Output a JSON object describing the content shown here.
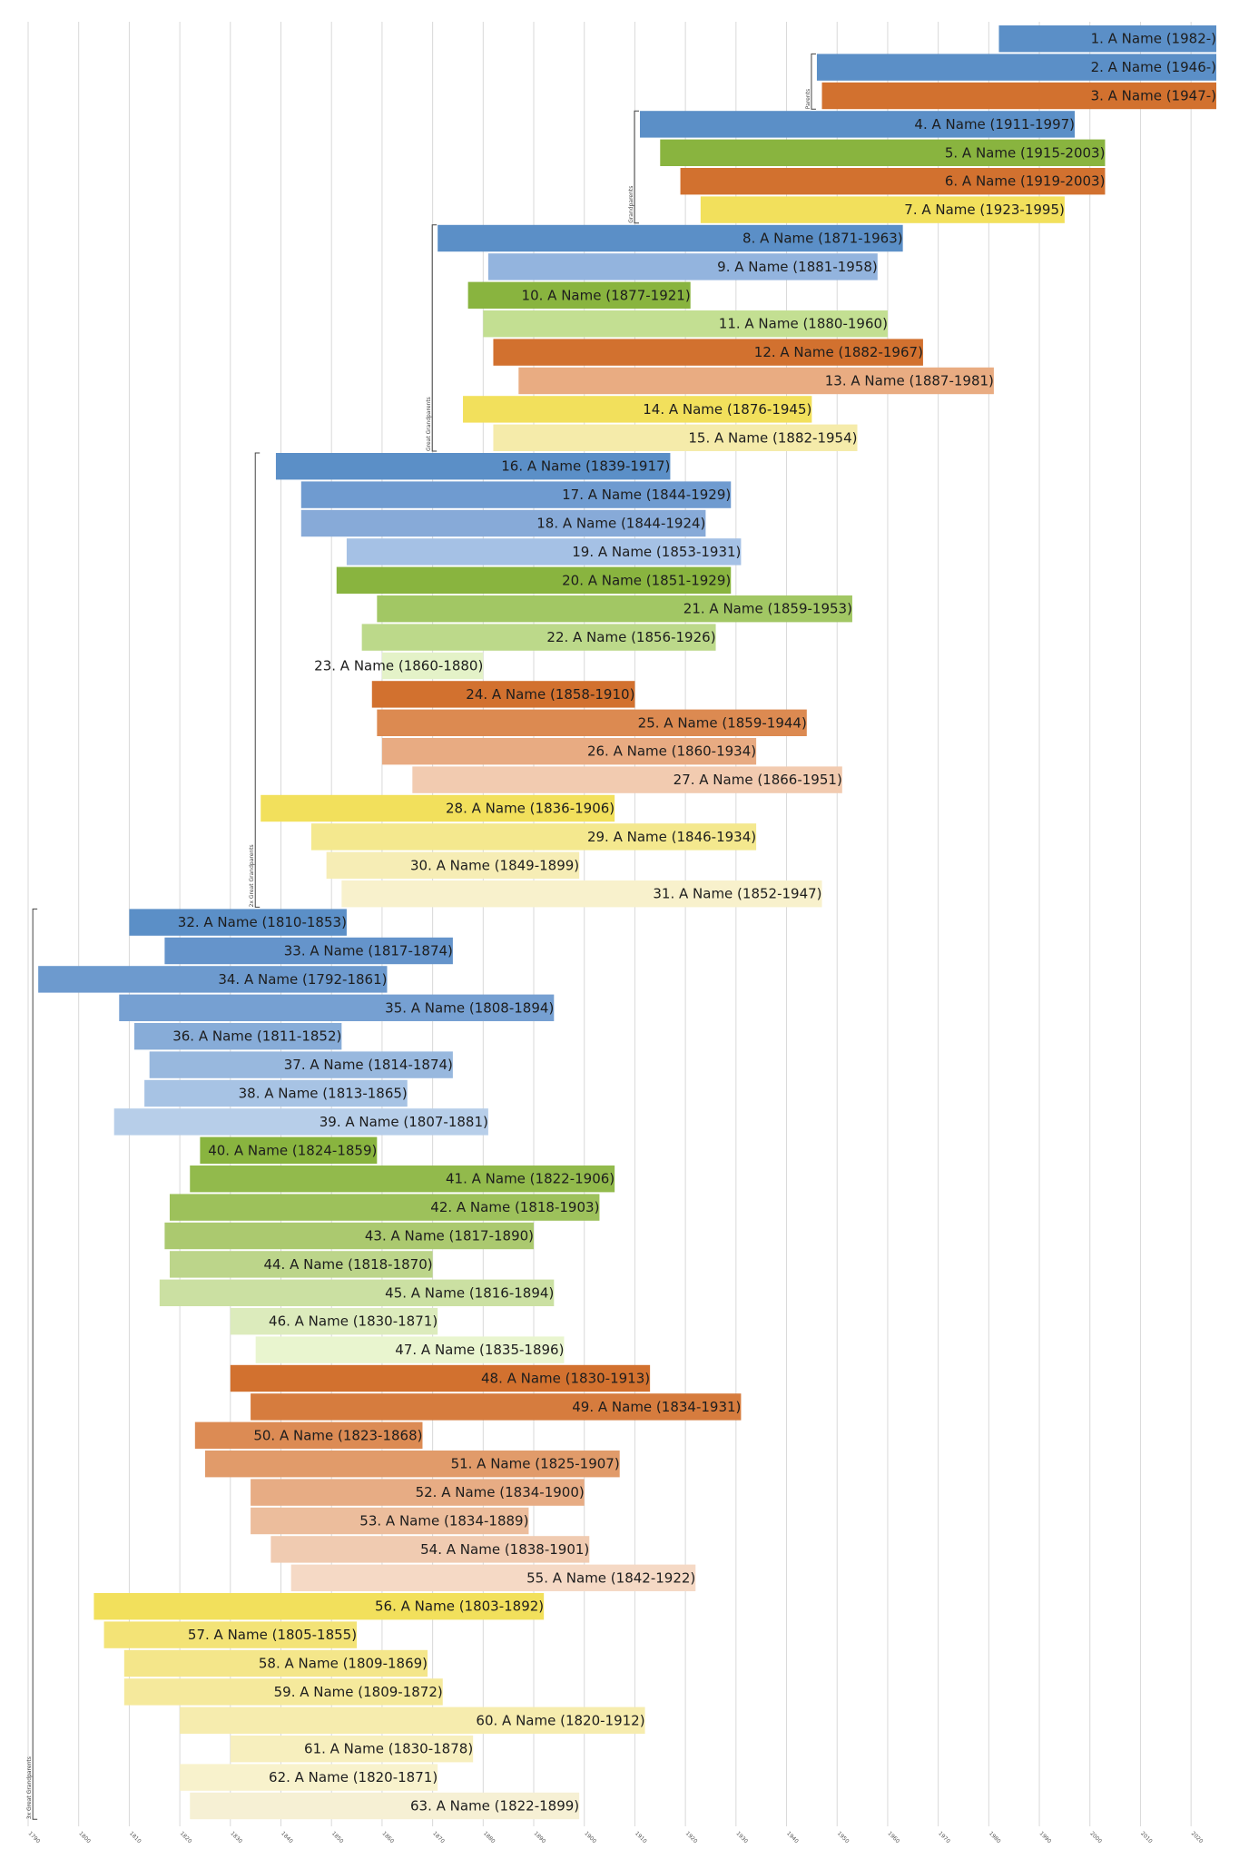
{
  "chart_data": {
    "type": "bar",
    "orientation": "horizontal",
    "x_domain": [
      1790,
      2025
    ],
    "x_ticks": [
      1790,
      1800,
      1810,
      1820,
      1830,
      1840,
      1850,
      1860,
      1870,
      1880,
      1890,
      1900,
      1910,
      1920,
      1930,
      1940,
      1950,
      1960,
      1970,
      1980,
      1990,
      2000,
      2010,
      2020
    ],
    "grid": true,
    "generations": [
      {
        "label": "Parents",
        "first": 2,
        "last": 3
      },
      {
        "label": "Grandparents",
        "first": 4,
        "last": 7
      },
      {
        "label": "Great Grandparents",
        "first": 8,
        "last": 15
      },
      {
        "label": "2x Great Grandparents",
        "first": 16,
        "last": 31
      },
      {
        "label": "3x Great Grandparents",
        "first": 32,
        "last": 63
      }
    ],
    "people": [
      {
        "label": "1. A Name (1982-)",
        "start": 1982,
        "end": 2025,
        "color": "#5b8fc7"
      },
      {
        "label": "2. A Name (1946-)",
        "start": 1946,
        "end": 2025,
        "color": "#5b8fc7"
      },
      {
        "label": "3. A Name (1947-)",
        "start": 1947,
        "end": 2025,
        "color": "#d2712f"
      },
      {
        "label": "4. A Name (1911-1997)",
        "start": 1911,
        "end": 1997,
        "color": "#5b8fc7"
      },
      {
        "label": "5. A Name (1915-2003)",
        "start": 1915,
        "end": 2003,
        "color": "#89b43f"
      },
      {
        "label": "6. A Name (1919-2003)",
        "start": 1919,
        "end": 2003,
        "color": "#d2712f"
      },
      {
        "label": "7. A Name (1923-1995)",
        "start": 1923,
        "end": 1995,
        "color": "#f2e05c"
      },
      {
        "label": "8. A Name (1871-1963)",
        "start": 1871,
        "end": 1963,
        "color": "#5b8fc7"
      },
      {
        "label": "9. A Name (1881-1958)",
        "start": 1881,
        "end": 1958,
        "color": "#93b4de"
      },
      {
        "label": "10. A Name (1877-1921)",
        "start": 1877,
        "end": 1921,
        "color": "#89b43f"
      },
      {
        "label": "11. A Name (1880-1960)",
        "start": 1880,
        "end": 1960,
        "color": "#c3df92"
      },
      {
        "label": "12. A Name (1882-1967)",
        "start": 1882,
        "end": 1967,
        "color": "#d2712f"
      },
      {
        "label": "13. A Name (1887-1981)",
        "start": 1887,
        "end": 1981,
        "color": "#e9ac82"
      },
      {
        "label": "14. A Name (1876-1945)",
        "start": 1876,
        "end": 1945,
        "color": "#f2e05c"
      },
      {
        "label": "15. A Name (1882-1954)",
        "start": 1882,
        "end": 1954,
        "color": "#f5ebaa"
      },
      {
        "label": "16. A Name (1839-1917)",
        "start": 1839,
        "end": 1917,
        "color": "#5b8fc7"
      },
      {
        "label": "17. A Name (1844-1929)",
        "start": 1844,
        "end": 1929,
        "color": "#6f9bd0"
      },
      {
        "label": "18. A Name (1844-1924)",
        "start": 1844,
        "end": 1924,
        "color": "#87aad8"
      },
      {
        "label": "19. A Name (1853-1931)",
        "start": 1853,
        "end": 1931,
        "color": "#a5c1e5"
      },
      {
        "label": "20. A Name (1851-1929)",
        "start": 1851,
        "end": 1929,
        "color": "#89b43f"
      },
      {
        "label": "21. A Name (1859-1953)",
        "start": 1859,
        "end": 1953,
        "color": "#a2c764"
      },
      {
        "label": "22. A Name (1856-1926)",
        "start": 1856,
        "end": 1926,
        "color": "#bcd98a"
      },
      {
        "label": "23. A Name (1860-1880)",
        "start": 1860,
        "end": 1880,
        "color": "#e4f2c8"
      },
      {
        "label": "24. A Name (1858-1910)",
        "start": 1858,
        "end": 1910,
        "color": "#d2712f"
      },
      {
        "label": "25. A Name (1859-1944)",
        "start": 1859,
        "end": 1944,
        "color": "#dc8a51"
      },
      {
        "label": "26. A Name (1860-1934)",
        "start": 1860,
        "end": 1934,
        "color": "#e8ab82"
      },
      {
        "label": "27. A Name (1866-1951)",
        "start": 1866,
        "end": 1951,
        "color": "#f2cbb0"
      },
      {
        "label": "28. A Name (1836-1906)",
        "start": 1836,
        "end": 1906,
        "color": "#f2e05c"
      },
      {
        "label": "29. A Name (1846-1934)",
        "start": 1846,
        "end": 1934,
        "color": "#f4e88e"
      },
      {
        "label": "30. A Name (1849-1899)",
        "start": 1849,
        "end": 1899,
        "color": "#f6edb5"
      },
      {
        "label": "31. A Name (1852-1947)",
        "start": 1852,
        "end": 1947,
        "color": "#f8f1cc"
      },
      {
        "label": "32. A Name (1810-1853)",
        "start": 1810,
        "end": 1853,
        "color": "#5b8fc7"
      },
      {
        "label": "33. A Name (1817-1874)",
        "start": 1817,
        "end": 1874,
        "color": "#6594cb"
      },
      {
        "label": "34. A Name (1792-1861)",
        "start": 1792,
        "end": 1861,
        "color": "#6d9ace"
      },
      {
        "label": "35. A Name (1808-1894)",
        "start": 1808,
        "end": 1894,
        "color": "#76a0d2"
      },
      {
        "label": "36. A Name (1811-1852)",
        "start": 1811,
        "end": 1852,
        "color": "#87acd8"
      },
      {
        "label": "37. A Name (1814-1874)",
        "start": 1814,
        "end": 1874,
        "color": "#98b8de"
      },
      {
        "label": "38. A Name (1813-1865)",
        "start": 1813,
        "end": 1865,
        "color": "#a7c3e4"
      },
      {
        "label": "39. A Name (1807-1881)",
        "start": 1807,
        "end": 1881,
        "color": "#b7cee9"
      },
      {
        "label": "40. A Name (1824-1859)",
        "start": 1824,
        "end": 1859,
        "color": "#89b43f"
      },
      {
        "label": "41. A Name (1822-1906)",
        "start": 1822,
        "end": 1906,
        "color": "#92ba4c"
      },
      {
        "label": "42. A Name (1818-1903)",
        "start": 1818,
        "end": 1903,
        "color": "#9dc15b"
      },
      {
        "label": "43. A Name (1817-1890)",
        "start": 1817,
        "end": 1890,
        "color": "#abc96f"
      },
      {
        "label": "44. A Name (1818-1870)",
        "start": 1818,
        "end": 1870,
        "color": "#bcd58a"
      },
      {
        "label": "45. A Name (1816-1894)",
        "start": 1816,
        "end": 1894,
        "color": "#cbe0a2"
      },
      {
        "label": "46. A Name (1830-1871)",
        "start": 1830,
        "end": 1871,
        "color": "#dcebbc"
      },
      {
        "label": "47. A Name (1835-1896)",
        "start": 1835,
        "end": 1896,
        "color": "#e9f5cf"
      },
      {
        "label": "48. A Name (1830-1913)",
        "start": 1830,
        "end": 1913,
        "color": "#d2712f"
      },
      {
        "label": "49. A Name (1834-1931)",
        "start": 1834,
        "end": 1931,
        "color": "#d67c3e"
      },
      {
        "label": "50. A Name (1823-1868)",
        "start": 1823,
        "end": 1868,
        "color": "#dc8b54"
      },
      {
        "label": "51. A Name (1825-1907)",
        "start": 1825,
        "end": 1907,
        "color": "#e19b6a"
      },
      {
        "label": "52. A Name (1834-1900)",
        "start": 1834,
        "end": 1900,
        "color": "#e7ac84"
      },
      {
        "label": "53. A Name (1834-1889)",
        "start": 1834,
        "end": 1889,
        "color": "#ecbd9c"
      },
      {
        "label": "54. A Name (1838-1901)",
        "start": 1838,
        "end": 1901,
        "color": "#f0cbb1"
      },
      {
        "label": "55. A Name (1842-1922)",
        "start": 1842,
        "end": 1922,
        "color": "#f5d9c5"
      },
      {
        "label": "56. A Name (1803-1892)",
        "start": 1803,
        "end": 1892,
        "color": "#f2e05c"
      },
      {
        "label": "57. A Name (1805-1855)",
        "start": 1805,
        "end": 1855,
        "color": "#f3e376"
      },
      {
        "label": "58. A Name (1809-1869)",
        "start": 1809,
        "end": 1869,
        "color": "#f4e68a"
      },
      {
        "label": "59. A Name (1809-1872)",
        "start": 1809,
        "end": 1872,
        "color": "#f5e99c"
      },
      {
        "label": "60. A Name (1820-1912)",
        "start": 1820,
        "end": 1912,
        "color": "#f6ecae"
      },
      {
        "label": "61. A Name (1830-1878)",
        "start": 1830,
        "end": 1878,
        "color": "#f7efbe"
      },
      {
        "label": "62. A Name (1820-1871)",
        "start": 1820,
        "end": 1871,
        "color": "#f8f2cc"
      },
      {
        "label": "63. A Name (1822-1899)",
        "start": 1822,
        "end": 1899,
        "color": "#f6f0d4"
      }
    ]
  }
}
